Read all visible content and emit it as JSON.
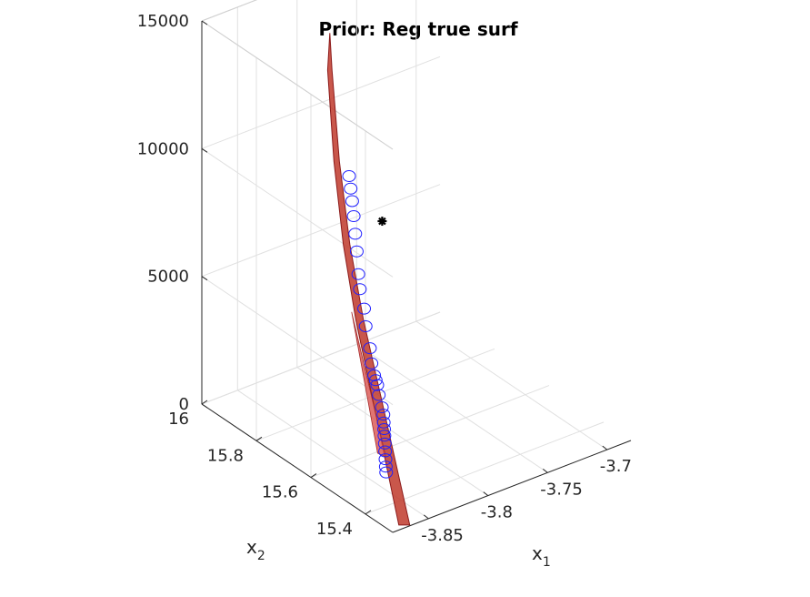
{
  "chart_data": {
    "type": "surface3d",
    "title": "Prior: Reg true surf",
    "xlabel": {
      "base": "x",
      "sub": "1"
    },
    "ylabel": {
      "base": "x",
      "sub": "2"
    },
    "zlabel": "",
    "xlim": [
      -3.88,
      -3.68
    ],
    "ylim": [
      15.3,
      16.0
    ],
    "zlim": [
      0,
      15000
    ],
    "x_ticks": [
      -3.85,
      -3.8,
      -3.75,
      -3.7
    ],
    "x_tick_labels": [
      "-3.85",
      "-3.8",
      "-3.75",
      "-3.7"
    ],
    "y_ticks": [
      15.4,
      15.6,
      15.8,
      16
    ],
    "y_tick_labels": [
      "15.4",
      "15.6",
      "15.8",
      "16"
    ],
    "z_ticks": [
      0,
      5000,
      10000,
      15000
    ],
    "z_tick_labels": [
      "0",
      "5000",
      "10000",
      "15000"
    ],
    "grid": true,
    "view": "3d-oblique",
    "surface": {
      "name": "Reg true surf",
      "color": "#c0392b",
      "ridge": [
        {
          "x1": -3.868,
          "x2": 15.31,
          "z": 0
        },
        {
          "x1": -3.855,
          "x2": 15.42,
          "z": 1600
        },
        {
          "x1": -3.842,
          "x2": 15.53,
          "z": 3200
        },
        {
          "x1": -3.83,
          "x2": 15.64,
          "z": 5000
        },
        {
          "x1": -3.818,
          "x2": 15.74,
          "z": 7000
        },
        {
          "x1": -3.808,
          "x2": 15.82,
          "z": 9500
        },
        {
          "x1": -3.8,
          "x2": 15.88,
          "z": 12500
        }
      ]
    },
    "samples": {
      "marker": "circle",
      "color": "#1f1fff",
      "points": [
        {
          "x1": -3.842,
          "x2": 15.49,
          "z": 300
        },
        {
          "x1": -3.84,
          "x2": 15.5,
          "z": 420
        },
        {
          "x1": -3.838,
          "x2": 15.51,
          "z": 600
        },
        {
          "x1": -3.836,
          "x2": 15.52,
          "z": 800
        },
        {
          "x1": -3.834,
          "x2": 15.53,
          "z": 1000
        },
        {
          "x1": -3.832,
          "x2": 15.54,
          "z": 1200
        },
        {
          "x1": -3.83,
          "x2": 15.55,
          "z": 1350
        },
        {
          "x1": -3.828,
          "x2": 15.56,
          "z": 1500
        },
        {
          "x1": -3.826,
          "x2": 15.57,
          "z": 1700
        },
        {
          "x1": -3.825,
          "x2": 15.58,
          "z": 1900
        },
        {
          "x1": -3.823,
          "x2": 15.6,
          "z": 2200
        },
        {
          "x1": -3.822,
          "x2": 15.61,
          "z": 2500
        },
        {
          "x1": -3.821,
          "x2": 15.62,
          "z": 2600
        },
        {
          "x1": -3.82,
          "x2": 15.63,
          "z": 2700
        },
        {
          "x1": -3.82,
          "x2": 15.64,
          "z": 3100
        },
        {
          "x1": -3.819,
          "x2": 15.65,
          "z": 3600
        },
        {
          "x1": -3.818,
          "x2": 15.67,
          "z": 4300
        },
        {
          "x1": -3.817,
          "x2": 15.68,
          "z": 4900
        },
        {
          "x1": -3.816,
          "x2": 15.7,
          "z": 5500
        },
        {
          "x1": -3.815,
          "x2": 15.71,
          "z": 6000
        },
        {
          "x1": -3.814,
          "x2": 15.72,
          "z": 6800
        },
        {
          "x1": -3.813,
          "x2": 15.73,
          "z": 7400
        },
        {
          "x1": -3.812,
          "x2": 15.74,
          "z": 8000
        },
        {
          "x1": -3.811,
          "x2": 15.75,
          "z": 8500
        },
        {
          "x1": -3.81,
          "x2": 15.76,
          "z": 8900
        },
        {
          "x1": -3.809,
          "x2": 15.77,
          "z": 9300
        }
      ]
    },
    "marked_point": {
      "marker": "star",
      "color": "#000000",
      "x1": -3.74,
      "x2": 15.95,
      "z": 5000
    }
  }
}
